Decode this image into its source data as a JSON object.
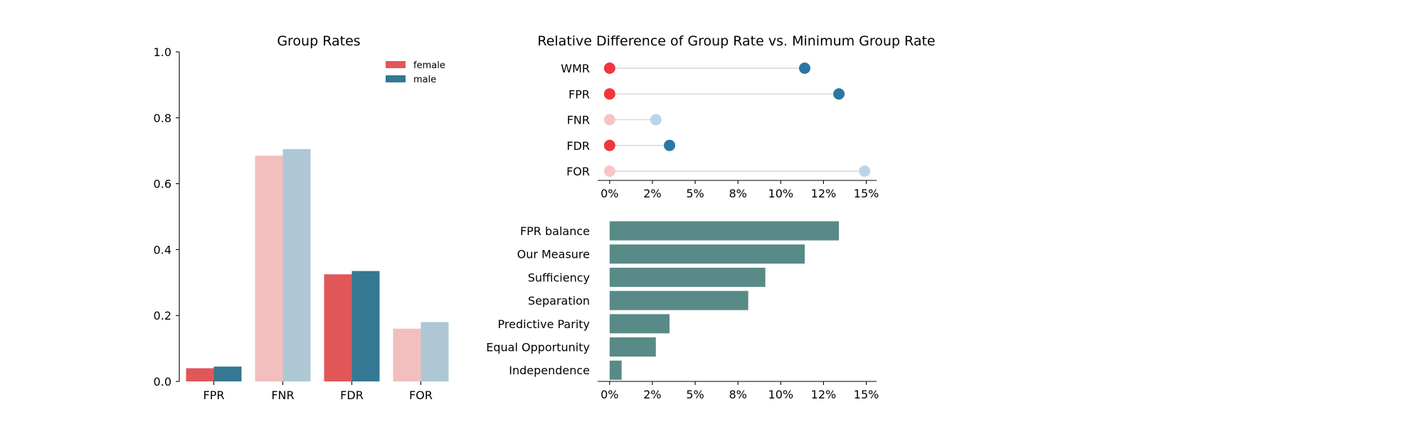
{
  "colors": {
    "female": "#e15759",
    "female_light": "#f3bebe",
    "male": "#347893",
    "male_light": "#adc8d4",
    "dot_female": "#f0363a",
    "dot_female_light": "#f8c4c4",
    "dot_male": "#2b77a3",
    "dot_male_light": "#bcd5e6",
    "connector": "#d9d9d9",
    "measure_bar": "#588a87"
  },
  "chart_data": [
    {
      "type": "bar",
      "title": "Group Rates",
      "categories": [
        "FPR",
        "FNR",
        "FDR",
        "FOR"
      ],
      "series": [
        {
          "name": "female",
          "values": [
            0.04,
            0.685,
            0.325,
            0.16
          ]
        },
        {
          "name": "male",
          "values": [
            0.045,
            0.705,
            0.335,
            0.18
          ]
        }
      ],
      "emphasized": [
        true,
        false,
        true,
        false
      ],
      "ylim": [
        0,
        1.0
      ],
      "yticks": [
        0.0,
        0.2,
        0.4,
        0.6,
        0.8,
        1.0
      ],
      "ytick_labels": [
        "0.0",
        "0.2",
        "0.4",
        "0.6",
        "0.8",
        "1.0"
      ],
      "legend": [
        "female",
        "male"
      ],
      "legend_position": "top-right"
    },
    {
      "type": "scatter",
      "title": "Relative Difference of Group Rate vs. Minimum Group Rate",
      "categories": [
        "WMR",
        "FPR",
        "FNR",
        "FDR",
        "FOR"
      ],
      "min_values": [
        0,
        0,
        0,
        0,
        0
      ],
      "max_values": [
        0.114,
        0.134,
        0.027,
        0.035,
        0.149
      ],
      "emphasized": [
        true,
        true,
        false,
        true,
        false
      ],
      "xlim": [
        -0.007,
        0.156
      ],
      "xticks": [
        0,
        0.025,
        0.05,
        0.075,
        0.1,
        0.125,
        0.15
      ],
      "xtick_labels": [
        "0%",
        "2%",
        "5%",
        "8%",
        "10%",
        "12%",
        "15%"
      ]
    },
    {
      "type": "bar",
      "orientation": "horizontal",
      "categories": [
        "FPR balance",
        "Our Measure",
        "Sufficiency",
        "Separation",
        "Predictive Parity",
        "Equal Opportunity",
        "Independence"
      ],
      "values": [
        0.134,
        0.114,
        0.091,
        0.081,
        0.035,
        0.027,
        0.007
      ],
      "xlim": [
        -0.007,
        0.156
      ],
      "xticks": [
        0,
        0.025,
        0.05,
        0.075,
        0.1,
        0.125,
        0.15
      ],
      "xtick_labels": [
        "0%",
        "2%",
        "5%",
        "8%",
        "10%",
        "12%",
        "15%"
      ]
    }
  ]
}
